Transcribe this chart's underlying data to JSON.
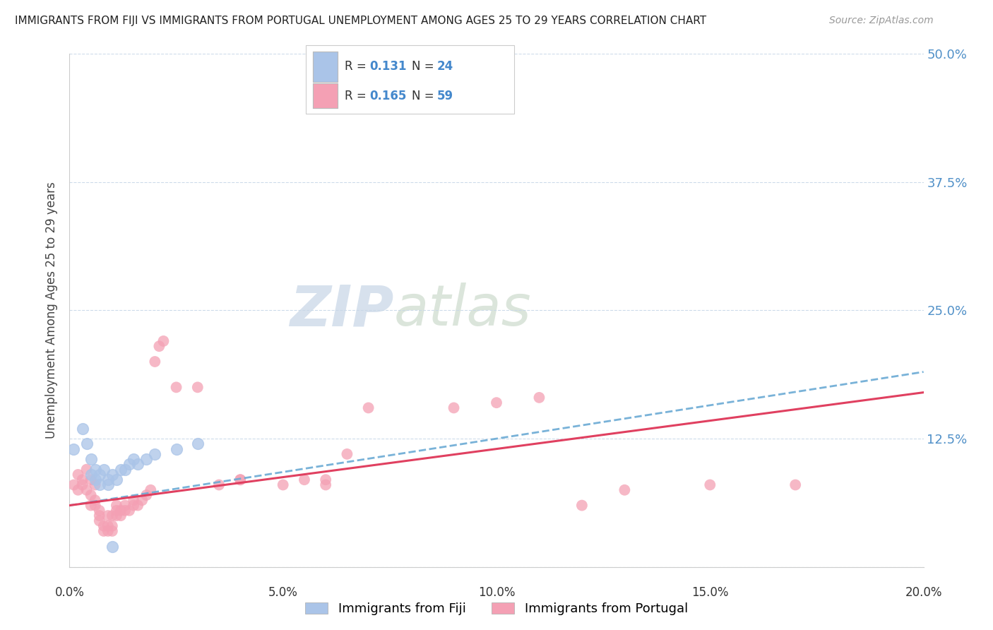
{
  "title": "IMMIGRANTS FROM FIJI VS IMMIGRANTS FROM PORTUGAL UNEMPLOYMENT AMONG AGES 25 TO 29 YEARS CORRELATION CHART",
  "source": "Source: ZipAtlas.com",
  "ylabel": "Unemployment Among Ages 25 to 29 years",
  "fiji_R": 0.131,
  "fiji_N": 24,
  "portugal_R": 0.165,
  "portugal_N": 59,
  "fiji_color": "#aac4e8",
  "portugal_color": "#f4a0b4",
  "fiji_line_color": "#6aaad4",
  "portugal_line_color": "#e04060",
  "background_color": "#ffffff",
  "grid_color": "#c8d8e8",
  "xlim": [
    0.0,
    0.2
  ],
  "ylim": [
    0.0,
    0.5
  ],
  "xticks": [
    0.0,
    0.05,
    0.1,
    0.15,
    0.2
  ],
  "yticks": [
    0.0,
    0.125,
    0.25,
    0.375,
    0.5
  ],
  "xticklabels": [
    "0.0%",
    "5.0%",
    "10.0%",
    "15.0%",
    "20.0%"
  ],
  "yticklabels_right": [
    "",
    "12.5%",
    "25.0%",
    "37.5%",
    "50.0%"
  ],
  "watermark_zip": "ZIP",
  "watermark_atlas": "atlas",
  "fiji_points": [
    [
      0.001,
      0.115
    ],
    [
      0.003,
      0.135
    ],
    [
      0.004,
      0.12
    ],
    [
      0.005,
      0.105
    ],
    [
      0.005,
      0.09
    ],
    [
      0.006,
      0.095
    ],
    [
      0.006,
      0.085
    ],
    [
      0.007,
      0.08
    ],
    [
      0.007,
      0.09
    ],
    [
      0.008,
      0.095
    ],
    [
      0.009,
      0.085
    ],
    [
      0.009,
      0.08
    ],
    [
      0.01,
      0.09
    ],
    [
      0.011,
      0.085
    ],
    [
      0.012,
      0.095
    ],
    [
      0.013,
      0.095
    ],
    [
      0.014,
      0.1
    ],
    [
      0.015,
      0.105
    ],
    [
      0.016,
      0.1
    ],
    [
      0.018,
      0.105
    ],
    [
      0.02,
      0.11
    ],
    [
      0.025,
      0.115
    ],
    [
      0.03,
      0.12
    ],
    [
      0.01,
      0.02
    ]
  ],
  "portugal_points": [
    [
      0.001,
      0.08
    ],
    [
      0.002,
      0.09
    ],
    [
      0.002,
      0.075
    ],
    [
      0.003,
      0.085
    ],
    [
      0.003,
      0.08
    ],
    [
      0.004,
      0.095
    ],
    [
      0.004,
      0.075
    ],
    [
      0.005,
      0.085
    ],
    [
      0.005,
      0.07
    ],
    [
      0.005,
      0.06
    ],
    [
      0.006,
      0.08
    ],
    [
      0.006,
      0.065
    ],
    [
      0.006,
      0.06
    ],
    [
      0.007,
      0.055
    ],
    [
      0.007,
      0.05
    ],
    [
      0.007,
      0.045
    ],
    [
      0.008,
      0.04
    ],
    [
      0.008,
      0.035
    ],
    [
      0.009,
      0.05
    ],
    [
      0.009,
      0.04
    ],
    [
      0.009,
      0.035
    ],
    [
      0.01,
      0.05
    ],
    [
      0.01,
      0.04
    ],
    [
      0.01,
      0.035
    ],
    [
      0.011,
      0.06
    ],
    [
      0.011,
      0.055
    ],
    [
      0.011,
      0.05
    ],
    [
      0.012,
      0.055
    ],
    [
      0.012,
      0.05
    ],
    [
      0.013,
      0.06
    ],
    [
      0.013,
      0.055
    ],
    [
      0.014,
      0.055
    ],
    [
      0.015,
      0.065
    ],
    [
      0.015,
      0.06
    ],
    [
      0.016,
      0.06
    ],
    [
      0.017,
      0.065
    ],
    [
      0.018,
      0.07
    ],
    [
      0.019,
      0.075
    ],
    [
      0.02,
      0.2
    ],
    [
      0.021,
      0.215
    ],
    [
      0.022,
      0.22
    ],
    [
      0.025,
      0.175
    ],
    [
      0.03,
      0.175
    ],
    [
      0.035,
      0.08
    ],
    [
      0.04,
      0.085
    ],
    [
      0.04,
      0.085
    ],
    [
      0.05,
      0.08
    ],
    [
      0.055,
      0.085
    ],
    [
      0.06,
      0.085
    ],
    [
      0.06,
      0.08
    ],
    [
      0.065,
      0.11
    ],
    [
      0.07,
      0.155
    ],
    [
      0.09,
      0.155
    ],
    [
      0.1,
      0.16
    ],
    [
      0.11,
      0.165
    ],
    [
      0.12,
      0.06
    ],
    [
      0.13,
      0.075
    ],
    [
      0.15,
      0.08
    ],
    [
      0.17,
      0.08
    ]
  ],
  "fiji_trend": [
    0.0,
    0.2,
    0.06,
    0.19
  ],
  "portugal_trend": [
    0.0,
    0.2,
    0.06,
    0.17
  ]
}
